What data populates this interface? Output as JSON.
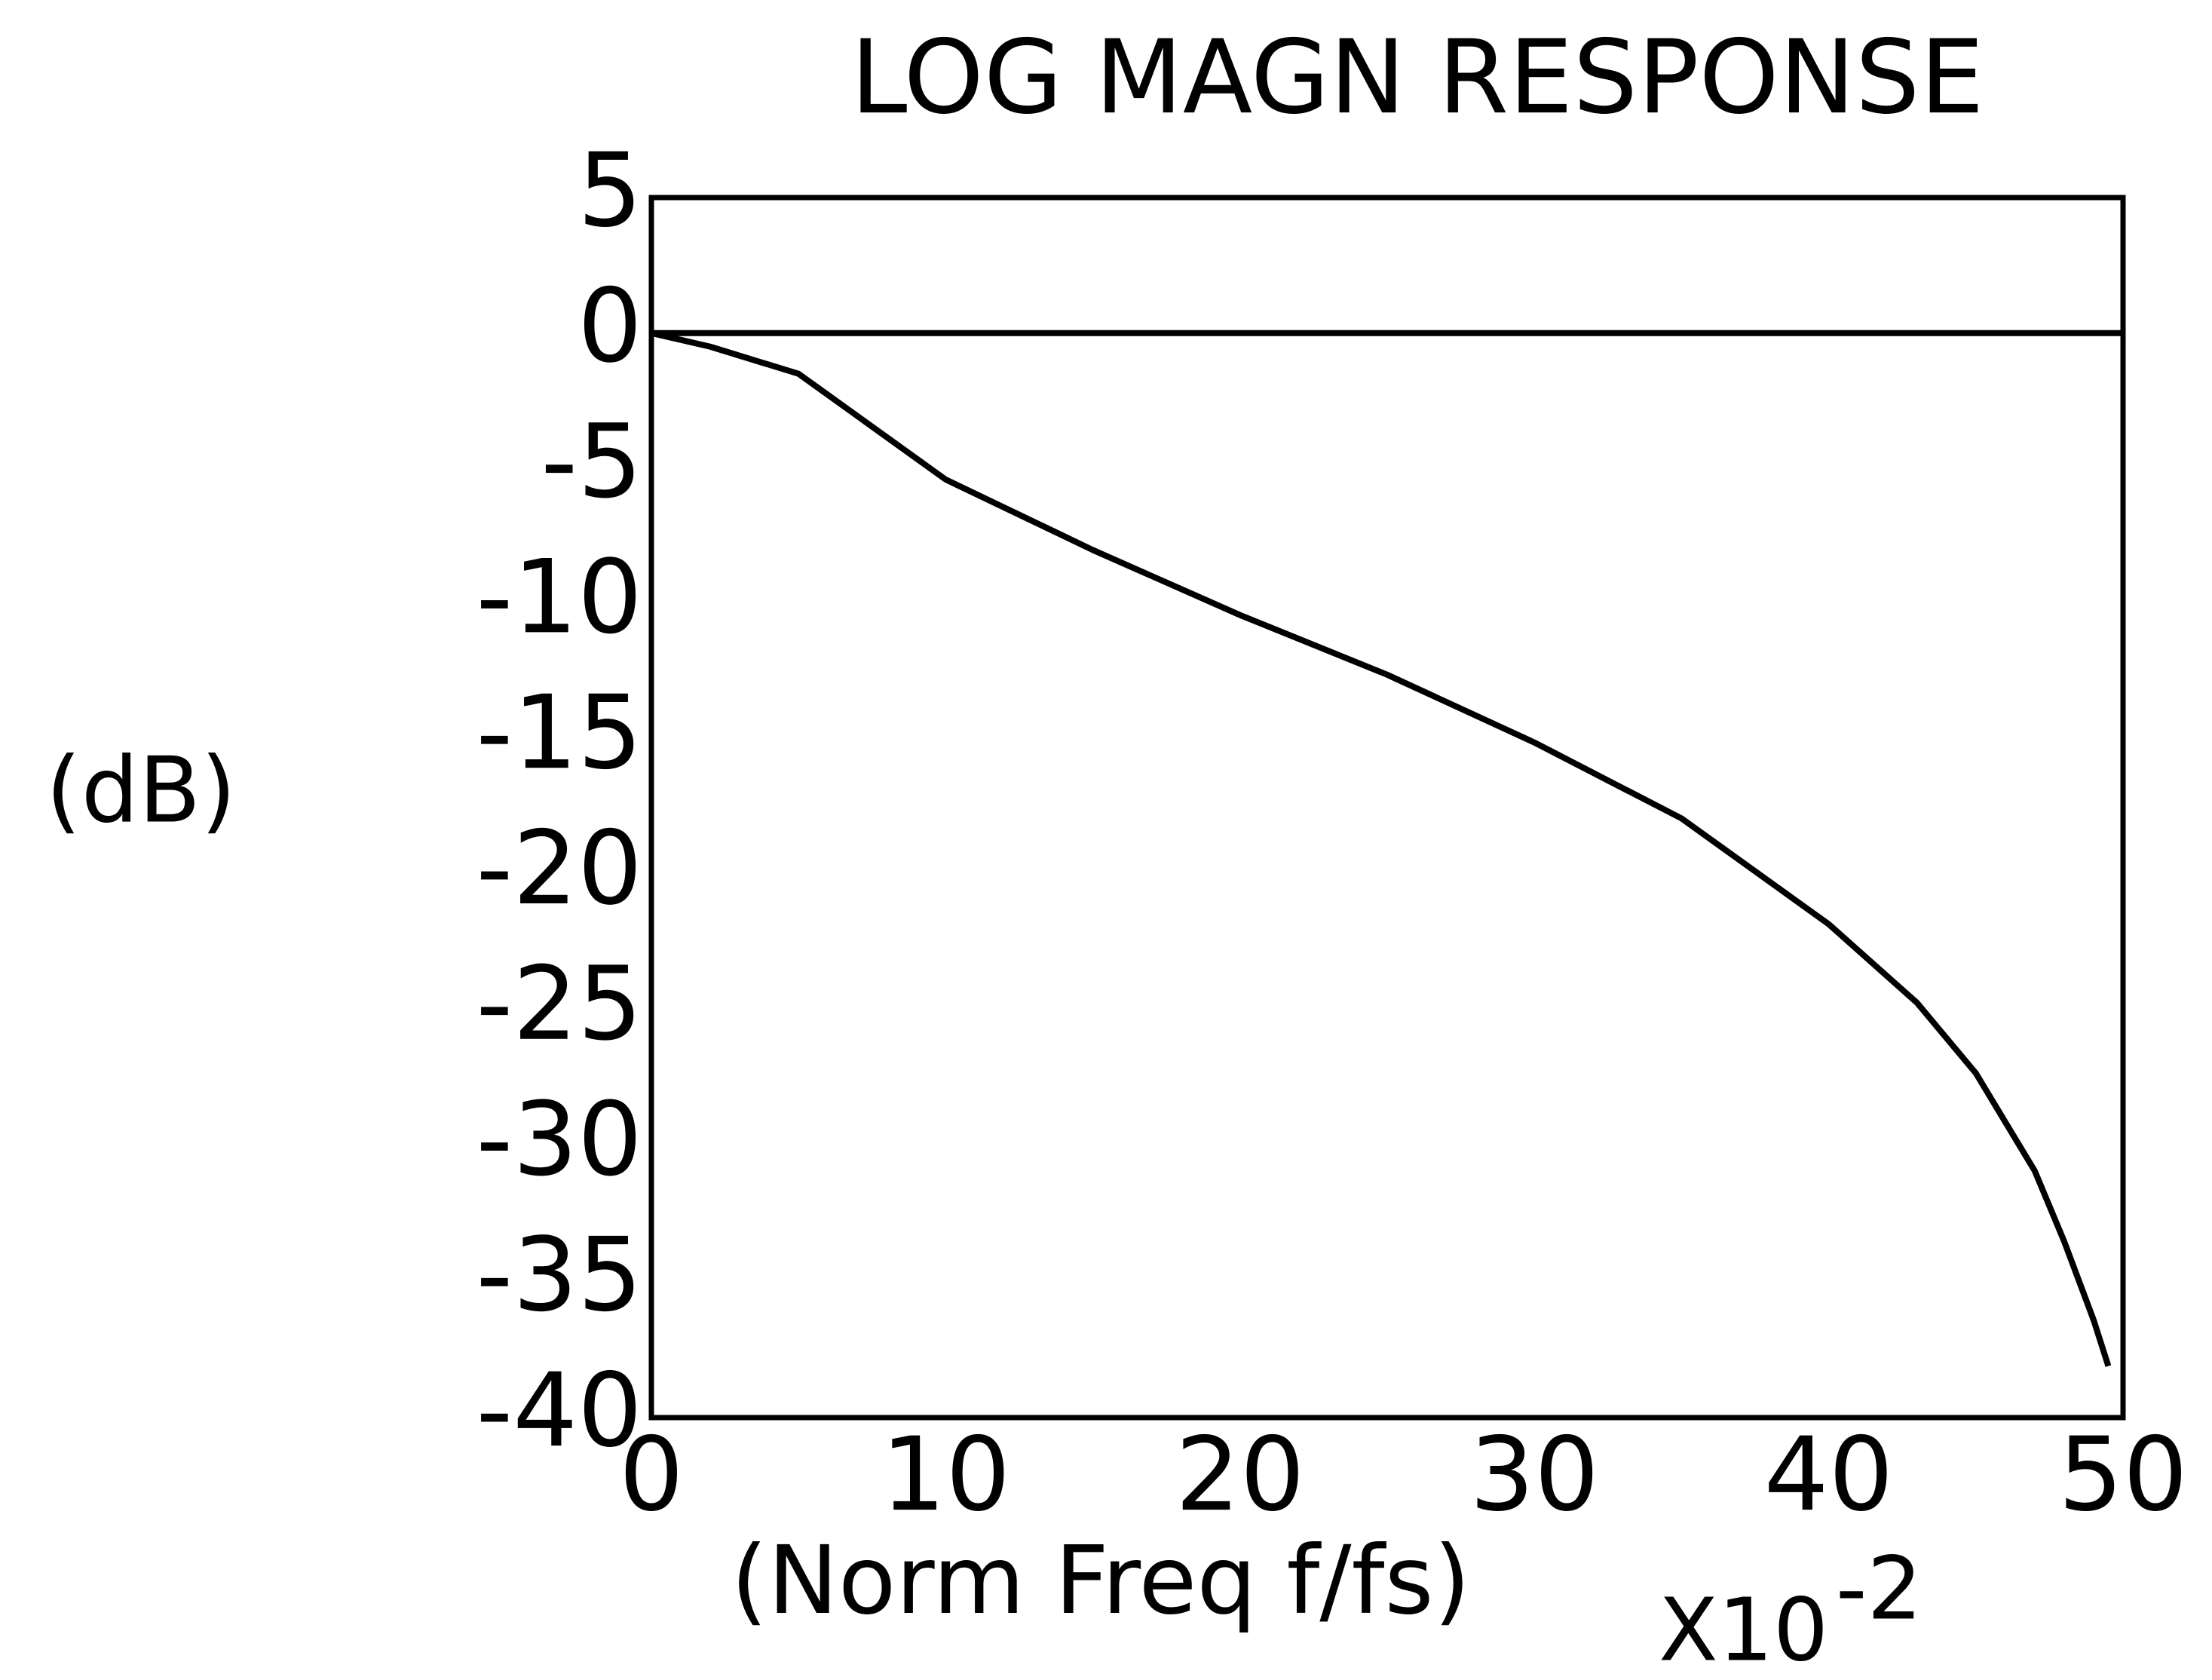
{
  "chart_data": {
    "type": "line",
    "title": "LOG MAGN RESPONSE",
    "ylabel": "(dB)",
    "xlabel": "(Norm Freq f/fs)",
    "x_multiplier": "X10",
    "x_multiplier_exponent": "-2",
    "xlim": [
      0,
      50
    ],
    "xticks": [
      0,
      10,
      20,
      30,
      40,
      50
    ],
    "ylim": [
      -40,
      5
    ],
    "yticks": [
      5,
      0,
      -5,
      -10,
      -15,
      -20,
      -25,
      -30,
      -35,
      -40
    ],
    "grid": false,
    "series": [
      {
        "color": "#000000",
        "x": [
          0,
          50
        ],
        "values": [
          0,
          0
        ]
      },
      {
        "color": "#000000",
        "x": [
          0,
          2,
          5,
          10,
          15,
          20,
          25,
          30,
          35,
          40,
          43,
          45,
          47,
          48,
          49,
          49.5
        ],
        "values": [
          0,
          -0.5,
          -1.5,
          -5.4,
          -8,
          -10.4,
          -12.6,
          -15.1,
          -17.9,
          -21.8,
          -24.7,
          -27.3,
          -30.9,
          -33.5,
          -36.4,
          -38.1
        ]
      }
    ]
  }
}
